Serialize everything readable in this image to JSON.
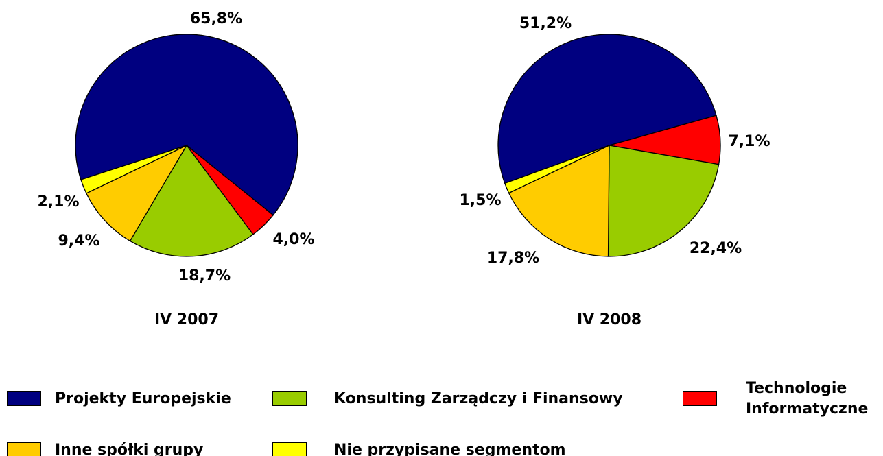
{
  "chart_data": [
    {
      "type": "pie",
      "title": "IV 2007",
      "categories": [
        "Projekty Europejskie",
        "Technologie Informatyczne",
        "Konsulting Zarządczy i Finansowy",
        "Inne spółki grupy",
        "Nie przypisane segmentom"
      ],
      "values": [
        65.8,
        4.0,
        18.7,
        9.4,
        2.1
      ],
      "value_labels": [
        "65,8%",
        "4,0%",
        "18,7%",
        "9,4%",
        "2,1%"
      ],
      "colors": [
        "#000080",
        "#ff0000",
        "#99cc00",
        "#ffcc00",
        "#ffff00"
      ]
    },
    {
      "type": "pie",
      "title": "IV 2008",
      "categories": [
        "Projekty Europejskie",
        "Technologie Informatyczne",
        "Konsulting Zarządczy i Finansowy",
        "Inne spółki grupy",
        "Nie przypisane segmentom"
      ],
      "values": [
        51.2,
        7.1,
        22.4,
        17.8,
        1.5
      ],
      "value_labels": [
        "51,2%",
        "7,1%",
        "22,4%",
        "17,8%",
        "1,5%"
      ],
      "colors": [
        "#000080",
        "#ff0000",
        "#99cc00",
        "#ffcc00",
        "#ffff00"
      ]
    }
  ]
}
